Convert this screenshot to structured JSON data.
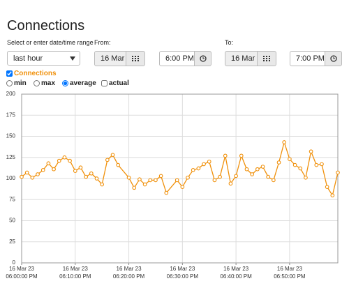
{
  "title": "Connections",
  "range_label": "Select or enter date/time range",
  "range_select": "last hour",
  "from": {
    "label": "From:",
    "date": "16 Mar 23",
    "time": "6:00 PM"
  },
  "to": {
    "label": "To:",
    "date": "16 Mar 23",
    "time": "7:00 PM"
  },
  "series_toggle": "Connections",
  "options": [
    "min",
    "max",
    "average",
    "actual"
  ],
  "selected_option": "average",
  "chart_data": {
    "type": "line",
    "x": [
      0,
      1,
      2,
      3,
      4,
      5,
      6,
      7,
      8,
      9,
      10,
      11,
      12,
      13,
      14,
      15,
      16,
      17,
      18,
      20,
      21,
      22,
      23,
      24,
      25,
      26,
      27,
      29,
      30,
      31,
      32,
      33,
      34,
      35,
      36,
      37,
      38,
      39,
      40,
      41,
      42,
      43,
      44,
      45,
      46,
      47,
      48,
      49,
      50,
      51,
      52,
      53,
      54,
      55,
      56,
      57,
      58,
      59
    ],
    "series": [
      {
        "name": "Connections",
        "color": "#f0900a",
        "values": [
          102,
          107,
          101,
          105,
          110,
          118,
          111,
          121,
          125,
          121,
          109,
          113,
          102,
          106,
          100,
          93,
          122,
          128,
          116,
          101,
          89,
          99,
          93,
          98,
          98,
          103,
          83,
          98,
          90,
          101,
          110,
          112,
          117,
          120,
          98,
          102,
          127,
          94,
          103,
          127,
          111,
          105,
          111,
          114,
          102,
          98,
          119,
          143,
          123,
          116,
          112,
          101,
          132,
          116,
          117,
          90,
          80,
          107
        ]
      }
    ],
    "xlim": [
      0,
      59
    ],
    "xticks": [
      {
        "value": 0,
        "label": "16 Mar 23\n06:00:00 PM"
      },
      {
        "value": 10,
        "label": "16 Mar 23\n06:10:00 PM"
      },
      {
        "value": 20,
        "label": "16 Mar 23\n06:20:00 PM"
      },
      {
        "value": 30,
        "label": "16 Mar 23\n06:30:00 PM"
      },
      {
        "value": 40,
        "label": "16 Mar 23\n06:40:00 PM"
      },
      {
        "value": 50,
        "label": "16 Mar 23\n06:50:00 PM"
      }
    ],
    "ylim": [
      0,
      200
    ],
    "yticks": [
      0,
      25,
      50,
      75,
      100,
      125,
      150,
      175,
      200
    ],
    "grid": true
  }
}
